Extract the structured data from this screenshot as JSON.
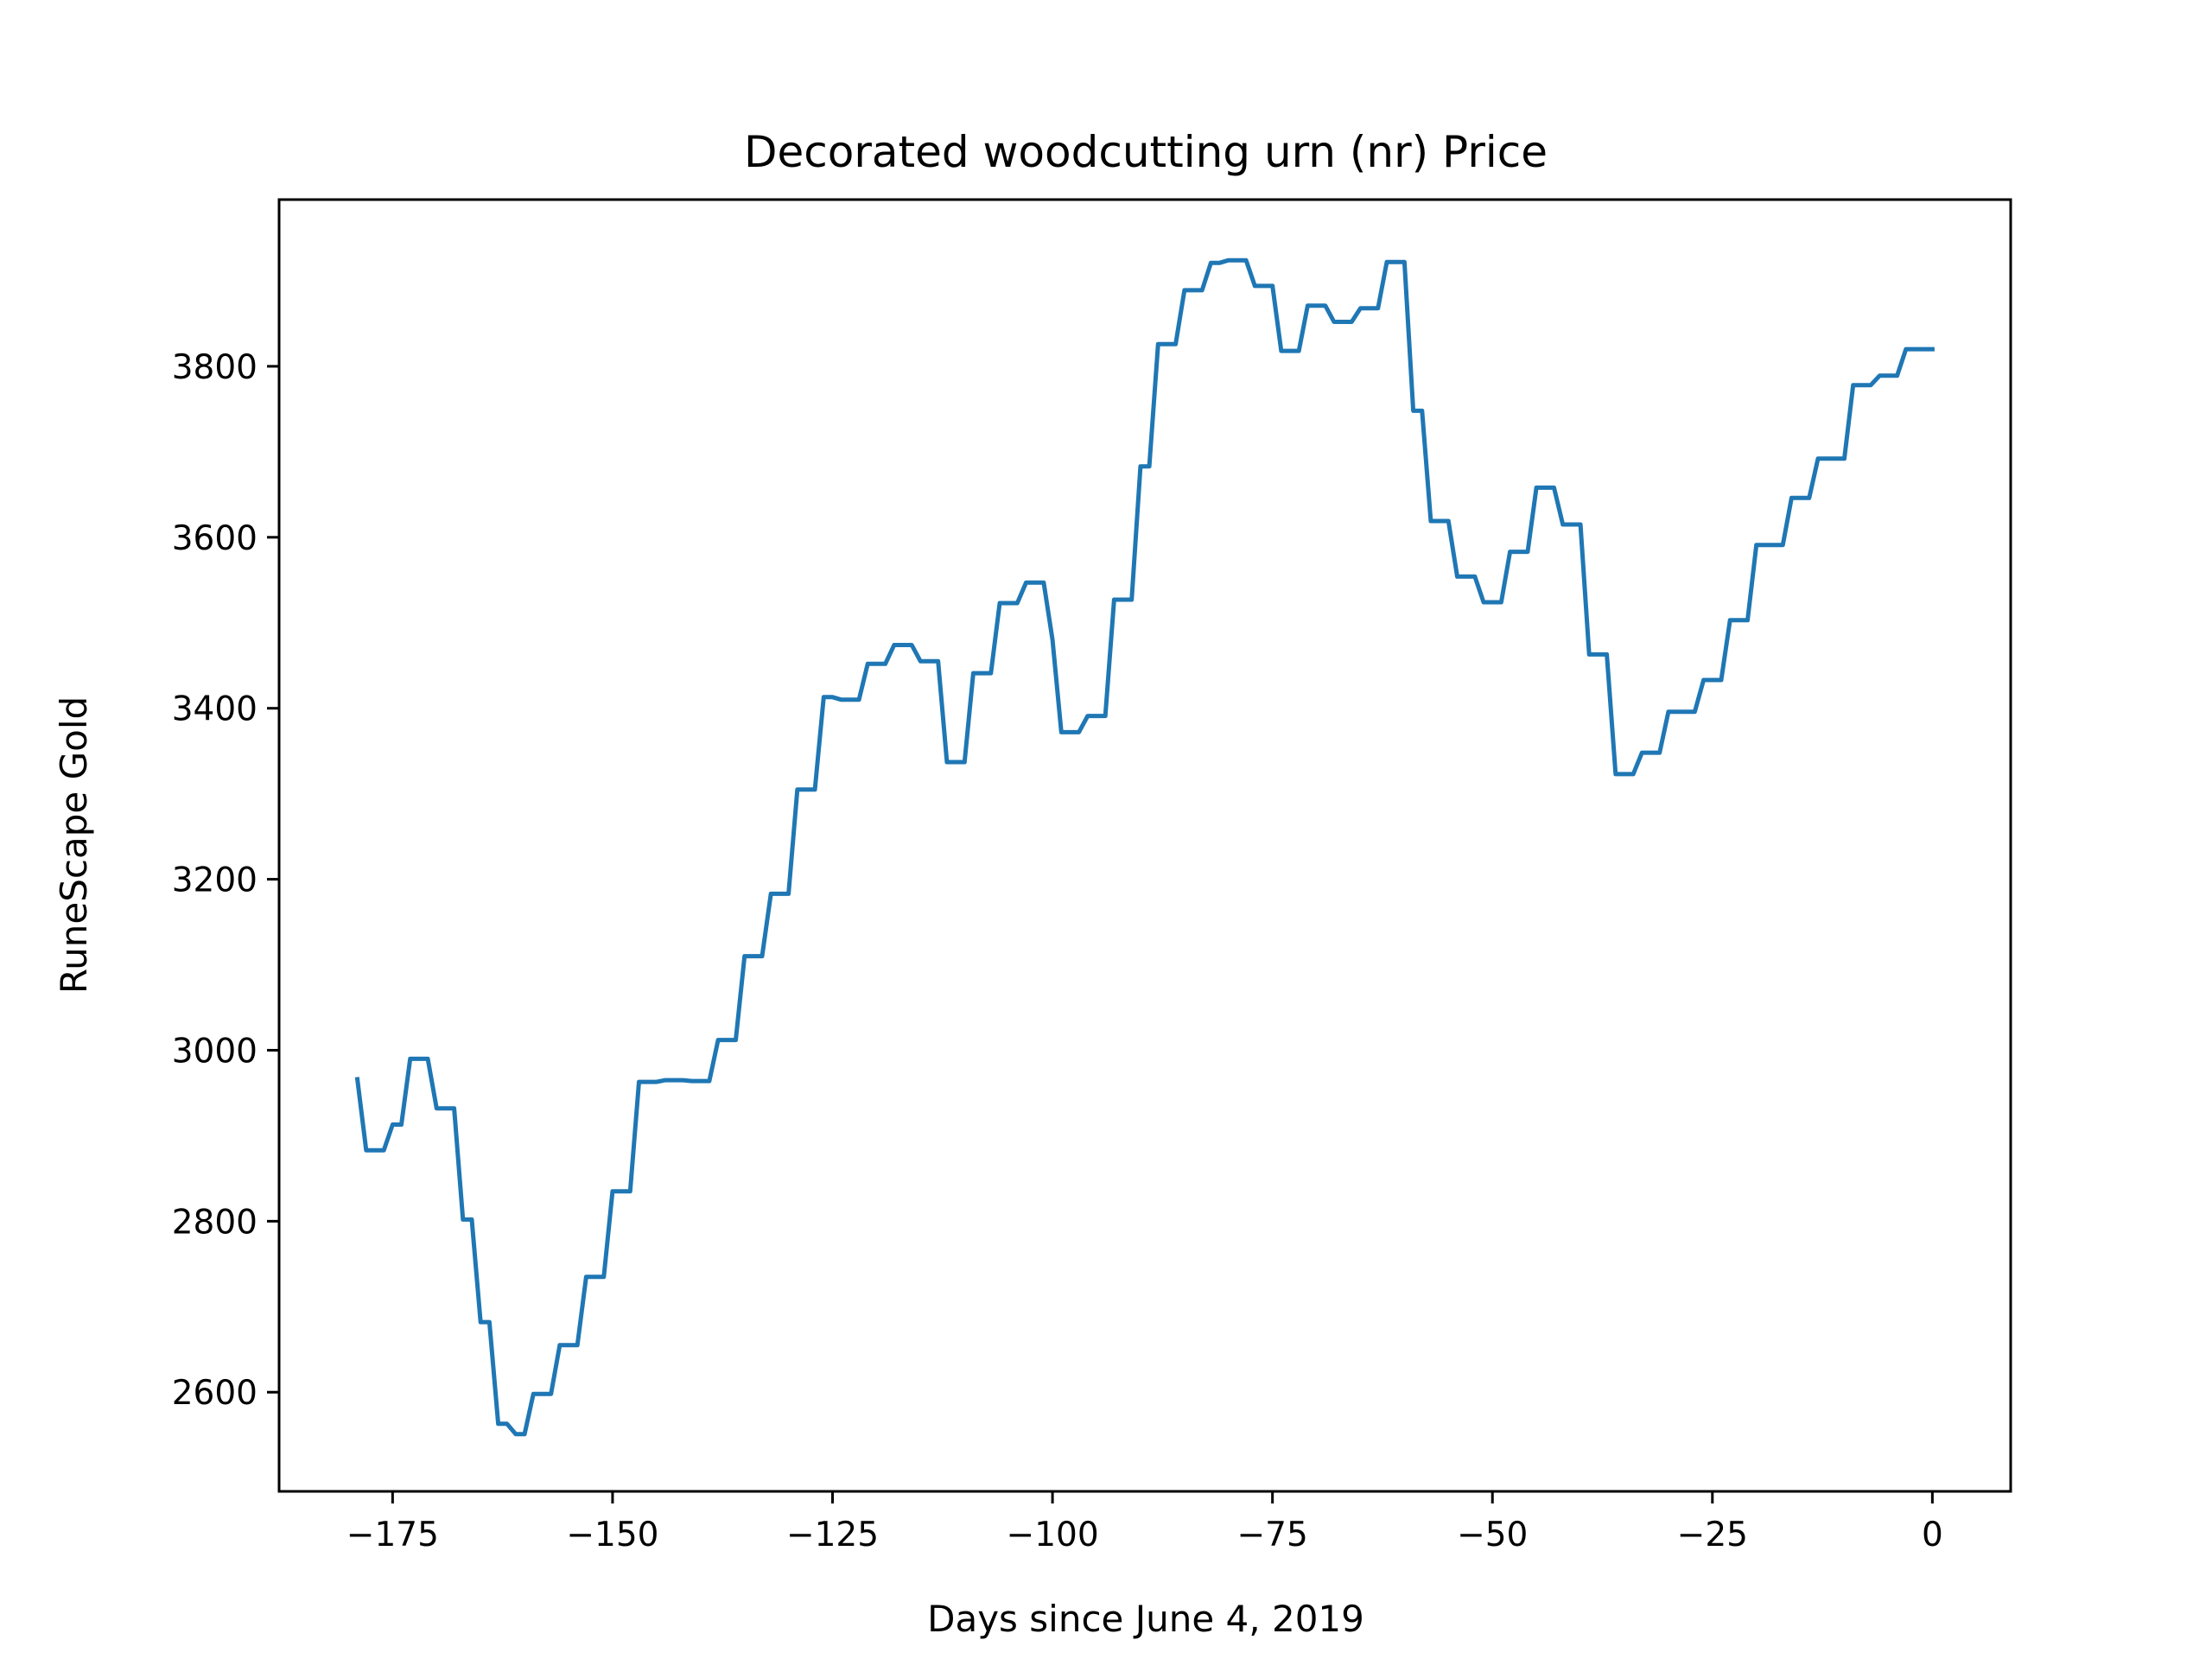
{
  "chart_data": {
    "type": "line",
    "title": "Decorated woodcutting urn (nr) Price",
    "xlabel": "Days since June 4, 2019",
    "ylabel": "RuneScape Gold",
    "xlim": [
      -187.9,
      8.9
    ],
    "ylim": [
      2484,
      3995
    ],
    "xticks": [
      -175,
      -150,
      -125,
      -100,
      -75,
      -50,
      -25,
      0
    ],
    "xtick_labels": [
      "−175",
      "−150",
      "−125",
      "−100",
      "−75",
      "−50",
      "−25",
      "0"
    ],
    "yticks": [
      2600,
      2800,
      3000,
      3200,
      3400,
      3600,
      3800
    ],
    "ytick_labels": [
      "2600",
      "2800",
      "3000",
      "3200",
      "3400",
      "3600",
      "3800"
    ],
    "grid": false,
    "line_color": "#1f77b4",
    "series": [
      {
        "x": [
          -179,
          -178,
          -177,
          -176,
          -175,
          -174,
          -173,
          -172,
          -171,
          -170,
          -169,
          -168,
          -167,
          -166,
          -165,
          -164,
          -163,
          -162,
          -161,
          -160,
          -159,
          -158,
          -157,
          -156,
          -155,
          -154,
          -153,
          -152,
          -151,
          -150,
          -149,
          -148,
          -147,
          -146,
          -145,
          -144,
          -143,
          -142,
          -141,
          -140,
          -139,
          -138,
          -137,
          -136,
          -135,
          -134,
          -133,
          -132,
          -131,
          -130,
          -129,
          -128,
          -127,
          -126,
          -125,
          -124,
          -123,
          -122,
          -121,
          -120,
          -119,
          -118,
          -117,
          -116,
          -115,
          -114,
          -113,
          -112,
          -111,
          -110,
          -109,
          -108,
          -107,
          -106,
          -105,
          -104,
          -103,
          -102,
          -101,
          -100,
          -99,
          -98,
          -97,
          -96,
          -95,
          -94,
          -93,
          -92,
          -91,
          -90,
          -89,
          -88,
          -87,
          -86,
          -85,
          -84,
          -83,
          -82,
          -81,
          -80,
          -79,
          -78,
          -77,
          -76,
          -75,
          -74,
          -73,
          -72,
          -71,
          -70,
          -69,
          -68,
          -67,
          -66,
          -65,
          -64,
          -63,
          -62,
          -61,
          -60,
          -59,
          -58,
          -57,
          -56,
          -55,
          -54,
          -53,
          -52,
          -51,
          -50,
          -49,
          -48,
          -47,
          -46,
          -45,
          -44,
          -43,
          -42,
          -41,
          -40,
          -39,
          -38,
          -37,
          -36,
          -35,
          -34,
          -33,
          -32,
          -31,
          -30,
          -29,
          -28,
          -27,
          -26,
          -25,
          -24,
          -23,
          -22,
          -21,
          -20,
          -19,
          -18,
          -17,
          -16,
          -15,
          -14,
          -13,
          -12,
          -11,
          -10,
          -9,
          -8,
          -7,
          -6,
          -5,
          -4,
          -3,
          -2,
          -1,
          0
        ],
        "values": [
          2966,
          2883,
          2883,
          2883,
          2913,
          2913,
          2990,
          2990,
          2990,
          2932,
          2932,
          2932,
          2802,
          2802,
          2682,
          2682,
          2563,
          2563,
          2551,
          2551,
          2598,
          2598,
          2598,
          2655,
          2655,
          2655,
          2735,
          2735,
          2735,
          2835,
          2835,
          2835,
          2963,
          2963,
          2963,
          2965,
          2965,
          2965,
          2964,
          2964,
          2964,
          3012,
          3012,
          3012,
          3110,
          3110,
          3110,
          3183,
          3183,
          3183,
          3305,
          3305,
          3305,
          3413,
          3413,
          3410,
          3410,
          3410,
          3452,
          3452,
          3452,
          3474,
          3474,
          3474,
          3455,
          3455,
          3455,
          3337,
          3337,
          3337,
          3441,
          3441,
          3441,
          3523,
          3523,
          3523,
          3547,
          3547,
          3547,
          3480,
          3372,
          3372,
          3372,
          3391,
          3391,
          3391,
          3527,
          3527,
          3527,
          3683,
          3683,
          3826,
          3826,
          3826,
          3889,
          3889,
          3889,
          3921,
          3921,
          3924,
          3924,
          3924,
          3894,
          3894,
          3894,
          3818,
          3818,
          3818,
          3871,
          3871,
          3871,
          3852,
          3852,
          3852,
          3868,
          3868,
          3868,
          3922,
          3922,
          3922,
          3748,
          3748,
          3619,
          3619,
          3619,
          3554,
          3554,
          3554,
          3524,
          3524,
          3524,
          3583,
          3583,
          3583,
          3658,
          3658,
          3658,
          3615,
          3615,
          3615,
          3463,
          3463,
          3463,
          3323,
          3323,
          3323,
          3348,
          3348,
          3348,
          3396,
          3396,
          3396,
          3396,
          3433,
          3433,
          3433,
          3503,
          3503,
          3503,
          3591,
          3591,
          3591,
          3591,
          3646,
          3646,
          3646,
          3692,
          3692,
          3692,
          3692,
          3778,
          3778,
          3778,
          3789,
          3789,
          3789,
          3820,
          3820,
          3820,
          3820
        ]
      }
    ]
  }
}
